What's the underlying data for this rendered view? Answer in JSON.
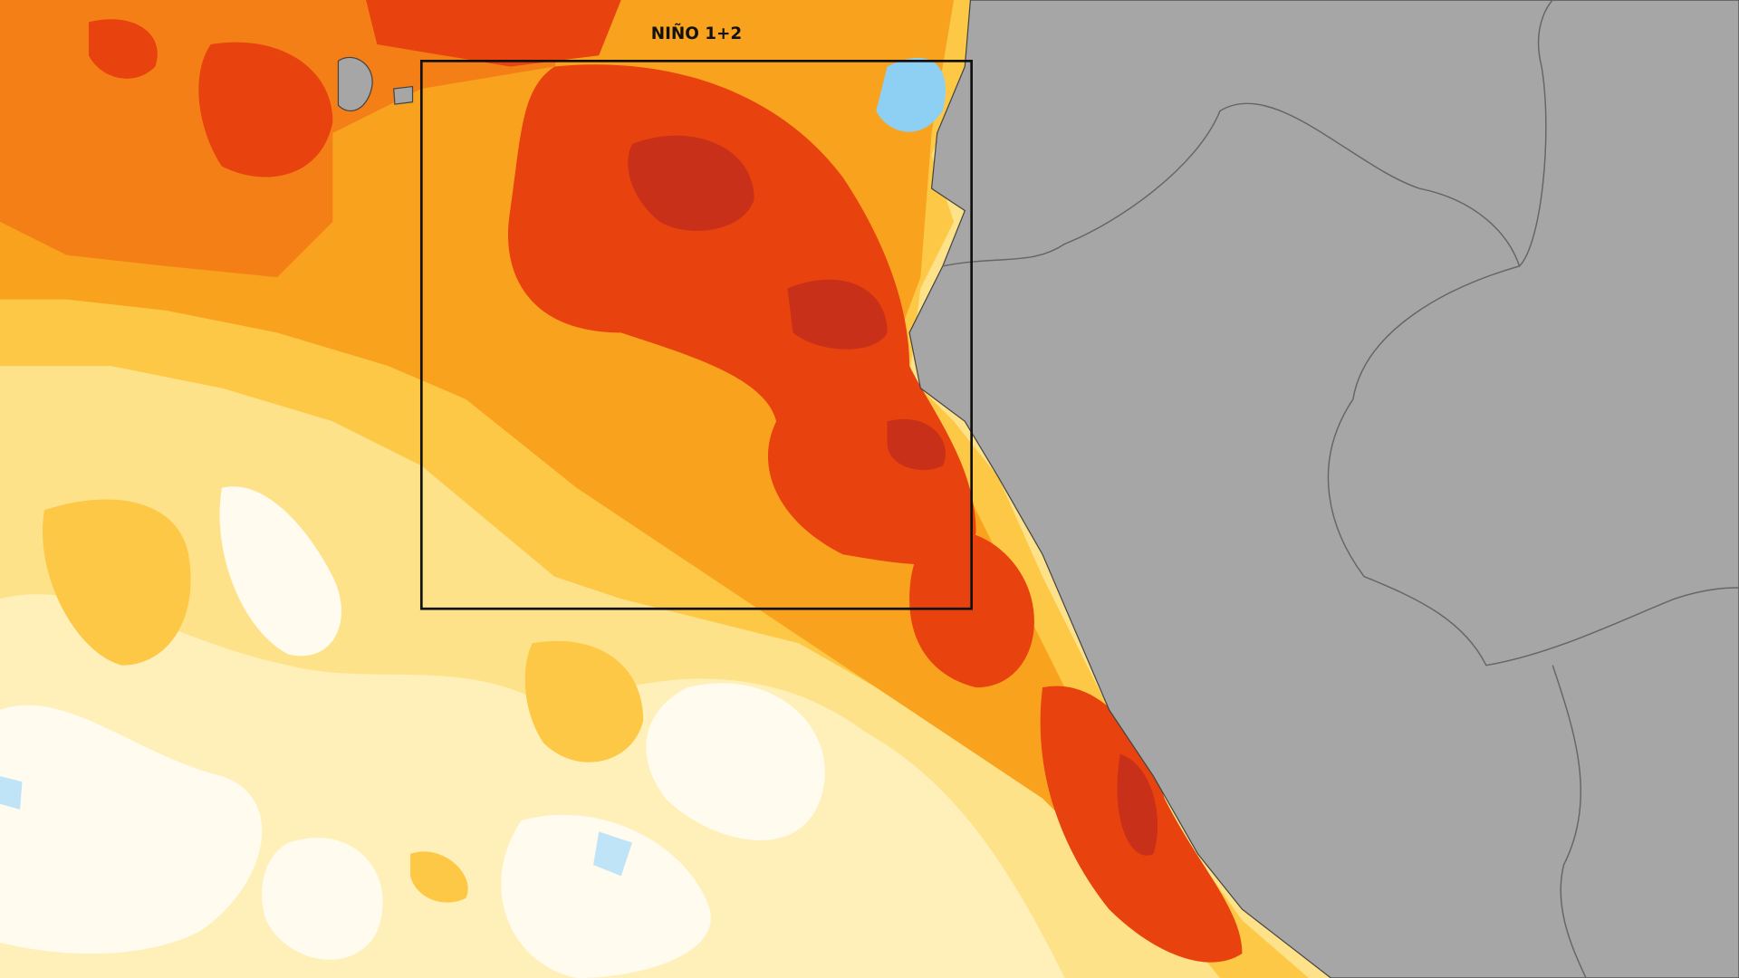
{
  "map": {
    "box_label": "NIÑO 1+2"
  }
}
